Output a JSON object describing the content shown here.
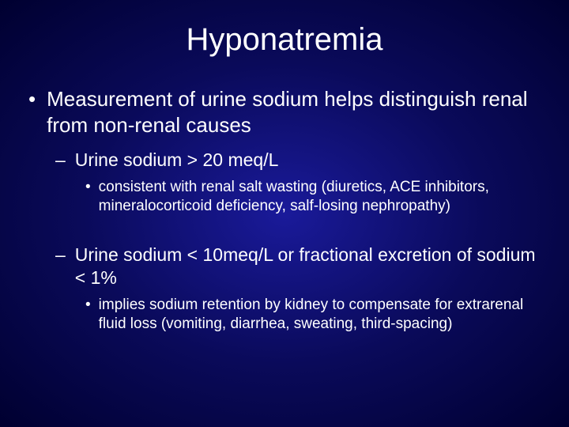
{
  "slide": {
    "title": "Hyponatremia",
    "bullets": {
      "l1_1": "Measurement of urine sodium helps distinguish renal from non-renal causes",
      "l2_1": "Urine sodium > 20 meq/L",
      "l3_1": "consistent with renal salt wasting (diuretics, ACE inhibitors, mineralocorticoid deficiency, salf-losing nephropathy)",
      "l2_2": "Urine sodium < 10meq/L or fractional excretion of sodium < 1%",
      "l3_2": "implies sodium retention by kidney to compensate for extrarenal fluid loss (vomiting, diarrhea, sweating, third-spacing)"
    },
    "markers": {
      "l1": "•",
      "l2": "–",
      "l3": "•"
    },
    "colors": {
      "text": "#ffffff",
      "bg_center": "#1a1a9a",
      "bg_mid": "#0a0a5a",
      "bg_edge": "#000030"
    },
    "fonts": {
      "title_size": 40,
      "l1_size": 26,
      "l2_size": 23,
      "l3_size": 19,
      "family": "Arial"
    }
  }
}
